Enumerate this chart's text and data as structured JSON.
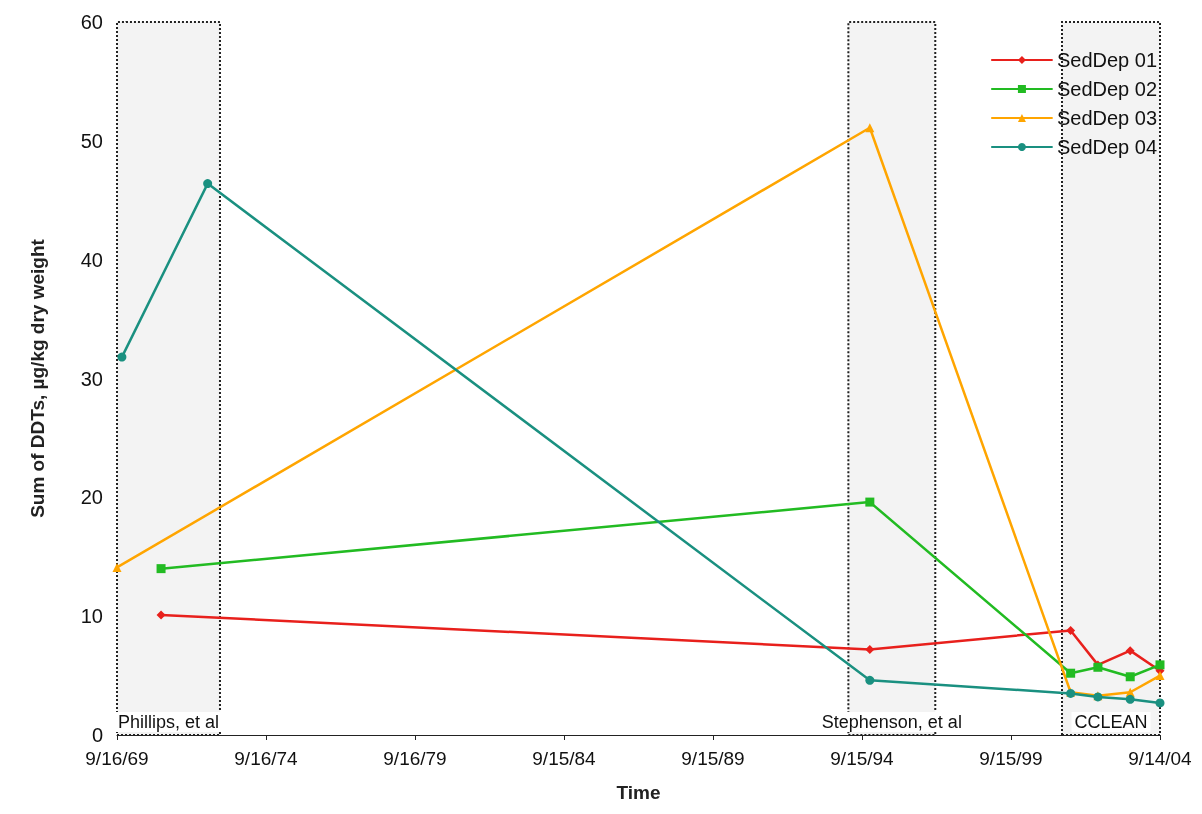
{
  "chart_data": {
    "type": "line",
    "xlabel": "Time",
    "ylabel": "Sum of DDTs, µg/kg dry weight",
    "xlim": [
      "1969-09-16",
      "2004-09-14"
    ],
    "xticks": [
      {
        "value": "1969-09-16",
        "label": "9/16/69"
      },
      {
        "value": "1974-09-16",
        "label": "9/16/74"
      },
      {
        "value": "1979-09-16",
        "label": "9/16/79"
      },
      {
        "value": "1984-09-15",
        "label": "9/15/84"
      },
      {
        "value": "1989-09-15",
        "label": "9/15/89"
      },
      {
        "value": "1994-09-15",
        "label": "9/15/94"
      },
      {
        "value": "1999-09-15",
        "label": "9/15/99"
      },
      {
        "value": "2004-09-14",
        "label": "9/14/04"
      }
    ],
    "ylim": [
      0,
      60
    ],
    "yticks": [
      0,
      10,
      20,
      30,
      40,
      50,
      60
    ],
    "grid": false,
    "legend": "top right",
    "series": [
      {
        "name": "SedDep 01",
        "color": "#e8201c",
        "marker": "diamond",
        "x": [
          "1971-03-10",
          "1994-12-20",
          "2001-09-15",
          "2002-08-15",
          "2003-09-15",
          "2004-09-14"
        ],
        "values": [
          10.1,
          7.2,
          8.8,
          5.9,
          7.1,
          5.4
        ]
      },
      {
        "name": "SedDep 02",
        "color": "#22bb22",
        "marker": "square",
        "x": [
          "1971-03-10",
          "1994-12-20",
          "2001-09-15",
          "2002-08-15",
          "2003-09-15",
          "2004-09-14"
        ],
        "values": [
          14.0,
          19.6,
          5.2,
          5.7,
          4.9,
          5.9
        ]
      },
      {
        "name": "SedDep 03",
        "color": "#ffa500",
        "marker": "triangle",
        "x": [
          "1969-09-16",
          "1994-12-20",
          "2001-09-15",
          "2002-08-15",
          "2003-09-15",
          "2004-09-14"
        ],
        "values": [
          14.1,
          51.1,
          3.6,
          3.3,
          3.6,
          5.0
        ]
      },
      {
        "name": "SedDep 04",
        "color": "#1a9080",
        "marker": "circle",
        "x": [
          "1969-11-15",
          "1972-10-01",
          "1994-12-20",
          "2001-09-15",
          "2002-08-15",
          "2003-09-15",
          "2004-09-14"
        ],
        "values": [
          31.8,
          46.4,
          4.6,
          3.5,
          3.2,
          3.0,
          2.7
        ]
      }
    ],
    "bands": [
      {
        "axis": "x",
        "from": "1969-09-16",
        "to": "1973-03-01",
        "label": "Phillips, et al",
        "color": "#f3f3f3"
      },
      {
        "axis": "x",
        "from": "1994-04-01",
        "to": "1997-03-01",
        "label": "Stephenson, et al",
        "color": "#f3f3f3"
      },
      {
        "axis": "x",
        "from": "2001-06-01",
        "to": "2004-09-14",
        "label": "CCLEAN",
        "color": "#f3f3f3"
      }
    ]
  }
}
